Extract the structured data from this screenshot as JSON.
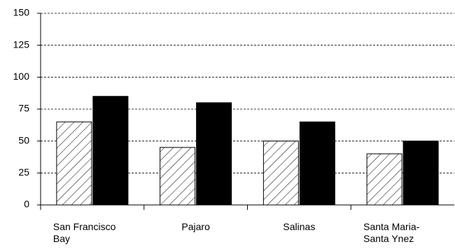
{
  "chart_data": {
    "type": "bar",
    "categories": [
      "San Francisco Bay",
      "Pajaro",
      "Salinas",
      "Santa Maria-Santa Ynez"
    ],
    "series": [
      {
        "color": "#000000",
        "pattern": "hatch",
        "values": [
          65,
          45,
          50,
          40
        ]
      },
      {
        "color": "#000000",
        "pattern": "solid",
        "values": [
          85,
          80,
          65,
          50
        ]
      }
    ],
    "ylim": [
      0,
      150
    ],
    "yticks": [
      0,
      25,
      50,
      75,
      100,
      125,
      150
    ],
    "grid": true
  }
}
